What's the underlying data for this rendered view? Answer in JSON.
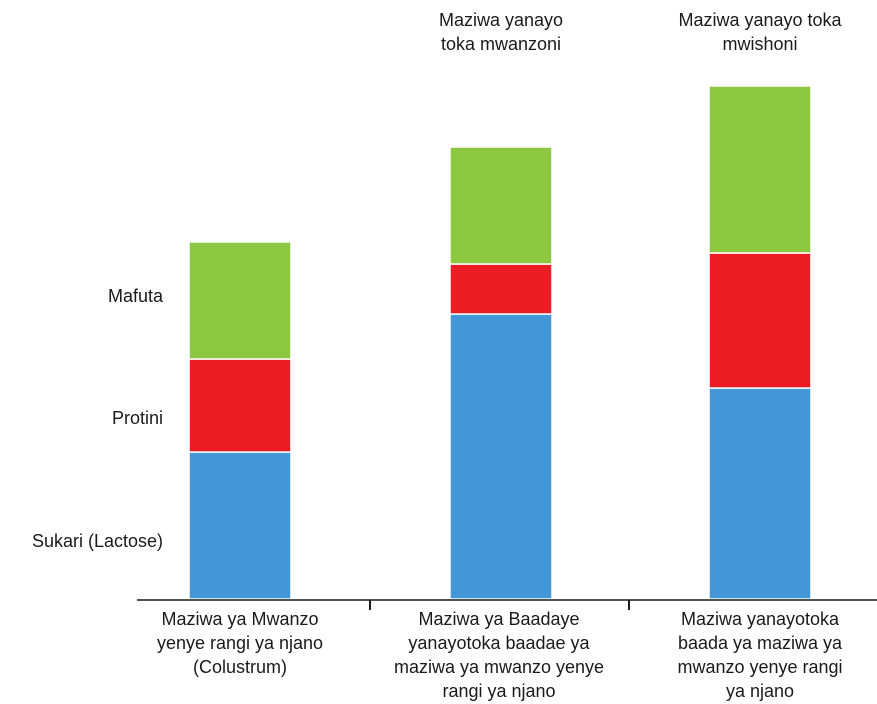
{
  "chart_data": {
    "type": "bar",
    "stacked": true,
    "categories": [
      "Maziwa ya Mwanzo yenye rangi ya njano (Colustrum)",
      "Maziwa ya Baadaye yanayotoka baadae ya maziwa ya mwanzo yenye rangi ya njano",
      "Maziwa yanayotoka baada ya maziwa ya mwanzo yenye rangi ya njano"
    ],
    "category_label_lines": [
      [
        "Maziwa ya Mwanzo",
        "yenye rangi ya njano",
        "(Colustrum)"
      ],
      [
        "Maziwa ya Baadaye",
        "yanayotoka baadae ya",
        "maziwa ya mwanzo yenye",
        "rangi ya njano"
      ],
      [
        "Maziwa yanayotoka",
        "baada ya maziwa ya",
        "mwanzo yenye rangi",
        "ya njano"
      ]
    ],
    "series": [
      {
        "name": "Sukari (Lactose)",
        "color": "#4397d6",
        "values": [
          147,
          285,
          211
        ]
      },
      {
        "name": "Protini",
        "color": "#ed1c24",
        "values": [
          93,
          50,
          135
        ]
      },
      {
        "name": "Mafuta",
        "color": "#8dc63f",
        "values": [
          117,
          117,
          167
        ]
      }
    ],
    "annotations": [
      {
        "category_index": 1,
        "lines": [
          "Maziwa yanayo",
          "toka mwanzoni"
        ]
      },
      {
        "category_index": 2,
        "lines": [
          "Maziwa yanayo toka",
          "mwishoni"
        ]
      }
    ],
    "ylim": [
      0,
      520
    ],
    "grid": false,
    "legend": "left, beside stack segments"
  }
}
